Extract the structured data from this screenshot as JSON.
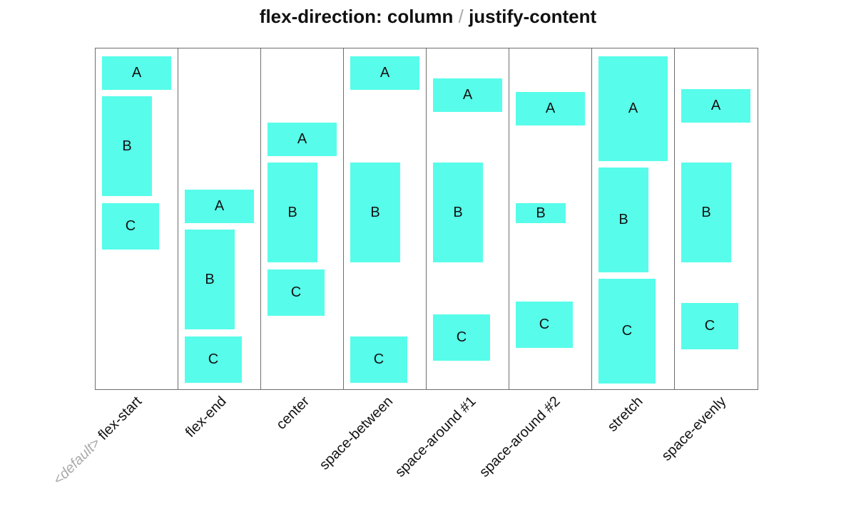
{
  "title": {
    "left": "flex-direction: column",
    "separator": "/",
    "right": "justify-content"
  },
  "default_marker": "<default>",
  "box_color": "#57fdea",
  "panels": [
    {
      "label": "flex-start",
      "is_default": true,
      "items": [
        {
          "text": "A"
        },
        {
          "text": "B"
        },
        {
          "text": "C"
        }
      ]
    },
    {
      "label": "flex-end",
      "is_default": false,
      "items": [
        {
          "text": "A"
        },
        {
          "text": "B"
        },
        {
          "text": "C"
        }
      ]
    },
    {
      "label": "center",
      "is_default": false,
      "items": [
        {
          "text": "A"
        },
        {
          "text": "B"
        },
        {
          "text": "C"
        }
      ]
    },
    {
      "label": "space-between",
      "is_default": false,
      "items": [
        {
          "text": "A"
        },
        {
          "text": "B"
        },
        {
          "text": "C"
        }
      ]
    },
    {
      "label": "space-around #1",
      "is_default": false,
      "items": [
        {
          "text": "A"
        },
        {
          "text": "B"
        },
        {
          "text": "C"
        }
      ]
    },
    {
      "label": "space-around #2",
      "is_default": false,
      "items": [
        {
          "text": "A"
        },
        {
          "text": "B"
        },
        {
          "text": "C"
        }
      ]
    },
    {
      "label": "stretch",
      "is_default": false,
      "items": [
        {
          "text": "A"
        },
        {
          "text": "B"
        },
        {
          "text": "C"
        }
      ]
    },
    {
      "label": "space-evenly",
      "is_default": false,
      "items": [
        {
          "text": "A"
        },
        {
          "text": "B"
        },
        {
          "text": "C"
        }
      ]
    }
  ]
}
